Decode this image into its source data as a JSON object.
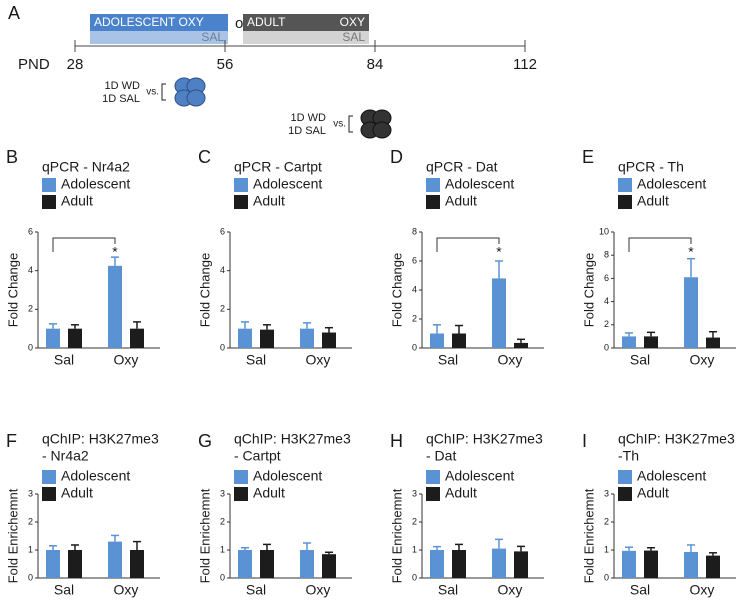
{
  "panel_a": {
    "letter": "A",
    "adolescent_box": {
      "top": "ADOLESCENT OXY",
      "bottom": "SAL"
    },
    "or": "or",
    "adult_box": {
      "left": "ADULT",
      "right": "OXY",
      "bottom": "SAL"
    },
    "timeline": {
      "label": "PND",
      "ticks": [
        28,
        56,
        84,
        112
      ]
    },
    "adolescent_test": {
      "lines": [
        "1D WD",
        "1D SAL"
      ],
      "vs": "vs."
    },
    "adult_test": {
      "lines": [
        "1D WD",
        "1D SAL"
      ],
      "vs": "vs."
    }
  },
  "chart_data": [
    {
      "type": "bar",
      "panel": "B",
      "title": [
        "qPCR - Nr4a2"
      ],
      "y_label": "Fold Change",
      "categories": [
        "Sal",
        "Oxy"
      ],
      "ylim": [
        0,
        6
      ],
      "yticks": [
        0,
        2,
        4,
        6
      ],
      "significance": "*",
      "series": [
        {
          "name": "Adolescent",
          "color": "#5b92d4",
          "values": [
            1.0,
            4.25
          ],
          "errors": [
            0.25,
            0.45
          ]
        },
        {
          "name": "Adult",
          "color": "#1c1c1c",
          "values": [
            1.0,
            1.0
          ],
          "errors": [
            0.2,
            0.35
          ]
        }
      ]
    },
    {
      "type": "bar",
      "panel": "C",
      "title": [
        "qPCR - Cartpt"
      ],
      "y_label": "Fold Change",
      "categories": [
        "Sal",
        "Oxy"
      ],
      "ylim": [
        0,
        6
      ],
      "yticks": [
        0,
        2,
        4,
        6
      ],
      "series": [
        {
          "name": "Adolescent",
          "color": "#5b92d4",
          "values": [
            1.0,
            1.0
          ],
          "errors": [
            0.35,
            0.3
          ]
        },
        {
          "name": "Adult",
          "color": "#1c1c1c",
          "values": [
            0.95,
            0.8
          ],
          "errors": [
            0.25,
            0.25
          ]
        }
      ]
    },
    {
      "type": "bar",
      "panel": "D",
      "title": [
        "qPCR - Dat"
      ],
      "y_label": "Fold Change",
      "categories": [
        "Sal",
        "Oxy"
      ],
      "ylim": [
        0,
        8
      ],
      "yticks": [
        0,
        2,
        4,
        6,
        8
      ],
      "significance": "*",
      "series": [
        {
          "name": "Adolescent",
          "color": "#5b92d4",
          "values": [
            1.0,
            4.8
          ],
          "errors": [
            0.6,
            1.2
          ]
        },
        {
          "name": "Adult",
          "color": "#1c1c1c",
          "values": [
            1.0,
            0.35
          ],
          "errors": [
            0.55,
            0.25
          ]
        }
      ]
    },
    {
      "type": "bar",
      "panel": "E",
      "title": [
        "qPCR - Th"
      ],
      "y_label": "Fold Change",
      "categories": [
        "Sal",
        "Oxy"
      ],
      "ylim": [
        0,
        10
      ],
      "yticks": [
        0,
        2,
        4,
        6,
        8,
        10
      ],
      "significance": "*",
      "series": [
        {
          "name": "Adolescent",
          "color": "#5b92d4",
          "values": [
            1.0,
            6.1
          ],
          "errors": [
            0.3,
            1.6
          ]
        },
        {
          "name": "Adult",
          "color": "#1c1c1c",
          "values": [
            1.0,
            0.9
          ],
          "errors": [
            0.35,
            0.5
          ]
        }
      ]
    },
    {
      "type": "bar",
      "panel": "F",
      "title": [
        "qChIP: H3K27me3",
        "- Nr4a2"
      ],
      "y_label": "Fold Enrichemnt",
      "categories": [
        "Sal",
        "Oxy"
      ],
      "ylim": [
        0,
        3
      ],
      "yticks": [
        0,
        1,
        2,
        3
      ],
      "series": [
        {
          "name": "Adolescent",
          "color": "#5b92d4",
          "values": [
            1.0,
            1.3
          ],
          "errors": [
            0.15,
            0.22
          ]
        },
        {
          "name": "Adult",
          "color": "#1c1c1c",
          "values": [
            1.0,
            1.0
          ],
          "errors": [
            0.18,
            0.3
          ]
        }
      ]
    },
    {
      "type": "bar",
      "panel": "G",
      "title": [
        "qChIP: H3K27me3",
        "- Cartpt"
      ],
      "y_label": "Fold Enrichemnt",
      "categories": [
        "Sal",
        "Oxy"
      ],
      "ylim": [
        0,
        3
      ],
      "yticks": [
        0,
        1,
        2,
        3
      ],
      "series": [
        {
          "name": "Adolescent",
          "color": "#5b92d4",
          "values": [
            1.0,
            1.0
          ],
          "errors": [
            0.08,
            0.25
          ]
        },
        {
          "name": "Adult",
          "color": "#1c1c1c",
          "values": [
            1.0,
            0.85
          ],
          "errors": [
            0.2,
            0.07
          ]
        }
      ]
    },
    {
      "type": "bar",
      "panel": "H",
      "title": [
        "qChIP: H3K27me3",
        "- Dat"
      ],
      "y_label": "Fold Enrichemnt",
      "categories": [
        "Sal",
        "Oxy"
      ],
      "ylim": [
        0,
        3
      ],
      "yticks": [
        0,
        1,
        2,
        3
      ],
      "series": [
        {
          "name": "Adolescent",
          "color": "#5b92d4",
          "values": [
            1.0,
            1.05
          ],
          "errors": [
            0.12,
            0.33
          ]
        },
        {
          "name": "Adult",
          "color": "#1c1c1c",
          "values": [
            1.0,
            0.95
          ],
          "errors": [
            0.2,
            0.18
          ]
        }
      ]
    },
    {
      "type": "bar",
      "panel": "I",
      "title": [
        "qChIP: H3K27me3",
        "-Th"
      ],
      "y_label": "Fold Enrichemnt",
      "categories": [
        "Sal",
        "Oxy"
      ],
      "ylim": [
        0,
        3
      ],
      "yticks": [
        0,
        1,
        2,
        3
      ],
      "series": [
        {
          "name": "Adolescent",
          "color": "#5b92d4",
          "values": [
            0.97,
            0.93
          ],
          "errors": [
            0.13,
            0.25
          ]
        },
        {
          "name": "Adult",
          "color": "#1c1c1c",
          "values": [
            0.98,
            0.8
          ],
          "errors": [
            0.1,
            0.1
          ]
        }
      ]
    }
  ]
}
